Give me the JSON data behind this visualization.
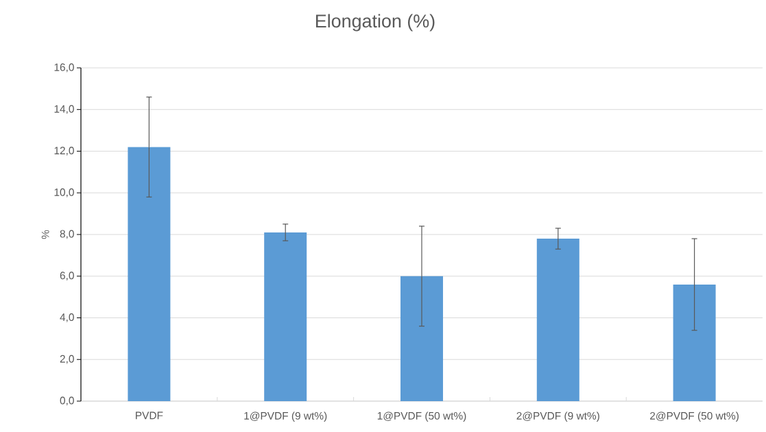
{
  "chart_data": {
    "type": "bar",
    "title": "Elongation (%)",
    "ylabel": "%",
    "categories": [
      "PVDF",
      "1@PVDF (9 wt%)",
      "1@PVDF (50 wt%)",
      "2@PVDF (9 wt%)",
      "2@PVDF (50 wt%)"
    ],
    "values": [
      12.2,
      8.1,
      6.0,
      7.8,
      5.6
    ],
    "errors": [
      2.4,
      0.4,
      2.4,
      0.5,
      2.2
    ],
    "color": "#5b9bd5",
    "ylim": [
      0,
      16
    ],
    "yticks": [
      {
        "value": 0,
        "label": "0,0"
      },
      {
        "value": 2,
        "label": "2,0"
      },
      {
        "value": 4,
        "label": "4,0"
      },
      {
        "value": 6,
        "label": "6,0"
      },
      {
        "value": 8,
        "label": "8,0"
      },
      {
        "value": 10,
        "label": "10,0"
      },
      {
        "value": 12,
        "label": "12,0"
      },
      {
        "value": 14,
        "label": "14,0"
      },
      {
        "value": 16,
        "label": "16,0"
      }
    ],
    "grid": "y"
  }
}
